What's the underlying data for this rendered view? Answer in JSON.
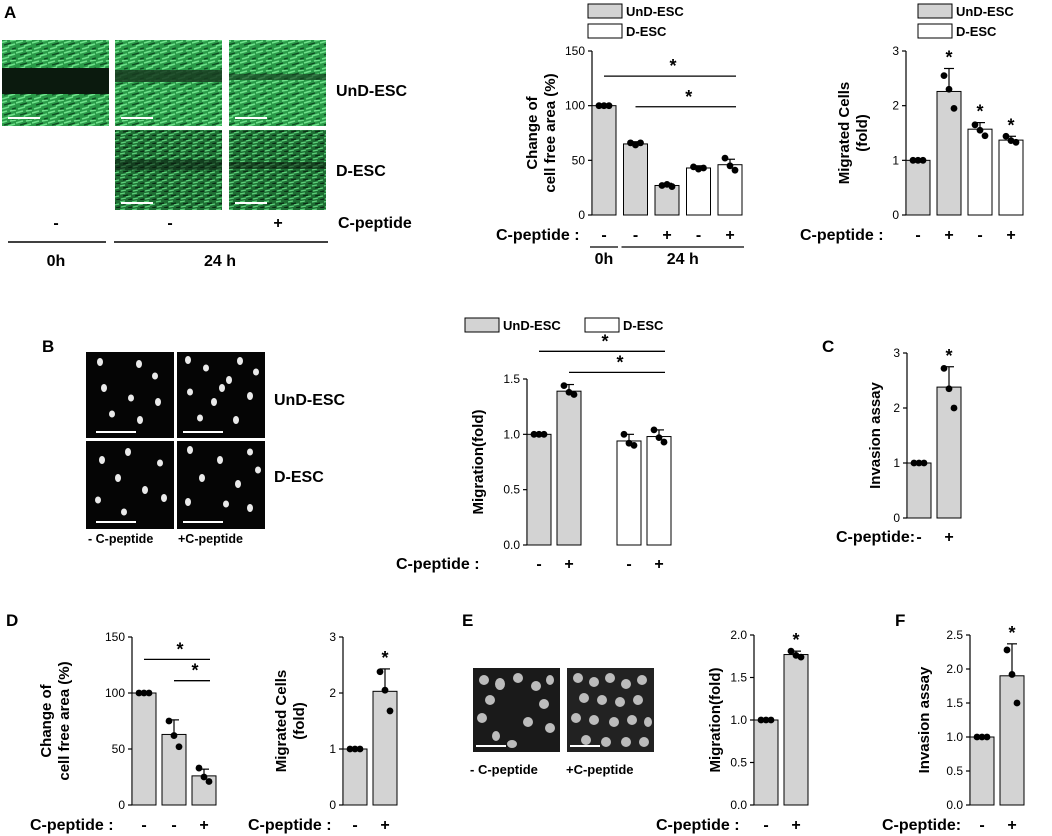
{
  "panels": {
    "A": {
      "letter": "A",
      "images": {
        "row1": "UnD-ESC",
        "row2": "D-ESC",
        "treat_label": "C-peptide",
        "minus": "-",
        "plus": "+",
        "time0": "0h",
        "time24": "24 h"
      }
    },
    "B": {
      "letter": "B",
      "images": {
        "row1": "UnD-ESC",
        "row2": "D-ESC",
        "cap_minus": "- C-peptide",
        "cap_plus": "+C-peptide"
      }
    },
    "C": {
      "letter": "C"
    },
    "D": {
      "letter": "D"
    },
    "E": {
      "letter": "E",
      "images": {
        "cap_minus": "- C-peptide",
        "cap_plus": "+C-peptide"
      }
    },
    "F": {
      "letter": "F"
    }
  },
  "colors": {
    "und_fill": "#d3d3d3",
    "d_fill": "#ffffff",
    "stroke": "#000000",
    "scratch_green": "#2fae55",
    "scratch_dark": "#0b1a0e"
  },
  "chart_data": [
    {
      "id": "A1",
      "type": "bar",
      "ylabel": [
        "Change of",
        "cell free area (%)"
      ],
      "ylim": [
        0,
        150
      ],
      "yticks": [
        0,
        50,
        100,
        150
      ],
      "legend": [
        "UnD-ESC",
        "D-ESC"
      ],
      "treat_label": "C-peptide :",
      "treatments": [
        "-",
        "-",
        "+",
        "-",
        "+"
      ],
      "time_labels": [
        {
          "text": "0h",
          "bars": [
            0,
            0
          ]
        },
        {
          "text": "24 h",
          "bars": [
            1,
            4
          ]
        }
      ],
      "bars": [
        {
          "value": 100,
          "err": 1,
          "group": "UnD-ESC",
          "points": [
            100,
            100,
            100
          ]
        },
        {
          "value": 65,
          "err": 2,
          "group": "UnD-ESC",
          "points": [
            66,
            64,
            66
          ]
        },
        {
          "value": 27,
          "err": 2,
          "group": "UnD-ESC",
          "points": [
            27,
            28,
            26
          ]
        },
        {
          "value": 43,
          "err": 2,
          "group": "D-ESC",
          "points": [
            44,
            42,
            43
          ]
        },
        {
          "value": 46,
          "err": 5,
          "group": "D-ESC",
          "points": [
            52,
            45,
            41
          ]
        }
      ],
      "sig": [
        {
          "from": 0,
          "to": 4,
          "y": 127,
          "label": "*"
        },
        {
          "from": 1,
          "to": 4,
          "y": 99,
          "label": "*"
        }
      ]
    },
    {
      "id": "A2",
      "type": "bar",
      "ylabel": [
        "Migrated Cells",
        "(fold)"
      ],
      "ylim": [
        0,
        3
      ],
      "yticks": [
        0,
        1,
        2,
        3
      ],
      "legend": [
        "UnD-ESC",
        "D-ESC"
      ],
      "treat_label": "C-peptide :",
      "treatments": [
        "-",
        "+",
        "-",
        "+"
      ],
      "bars": [
        {
          "value": 1.0,
          "err": 0.02,
          "group": "UnD-ESC",
          "points": [
            1.0,
            1.0,
            1.0
          ]
        },
        {
          "value": 2.26,
          "err": 0.42,
          "group": "UnD-ESC",
          "points": [
            2.55,
            2.3,
            1.95
          ],
          "star": true
        },
        {
          "value": 1.57,
          "err": 0.12,
          "group": "D-ESC",
          "points": [
            1.65,
            1.55,
            1.45
          ],
          "star": true
        },
        {
          "value": 1.37,
          "err": 0.07,
          "group": "D-ESC",
          "points": [
            1.44,
            1.36,
            1.33
          ],
          "star": true
        }
      ]
    },
    {
      "id": "B1",
      "type": "bar",
      "ylabel": [
        "Migration(fold)"
      ],
      "ylim": [
        0,
        1.5
      ],
      "yticks": [
        "0.0",
        "0.5",
        "1.0",
        "1.5"
      ],
      "legend": [
        "UnD-ESC",
        "D-ESC"
      ],
      "treat_label": "C-peptide :",
      "treatments": [
        "-",
        "+",
        "-",
        "+"
      ],
      "bars": [
        {
          "value": 1.0,
          "err": 0.01,
          "group": "UnD-ESC",
          "points": [
            1.0,
            1.0,
            1.0
          ]
        },
        {
          "value": 1.39,
          "err": 0.06,
          "group": "UnD-ESC",
          "points": [
            1.44,
            1.38,
            1.36
          ]
        },
        {
          "value": 0.94,
          "err": 0.06,
          "group": "D-ESC",
          "points": [
            1.0,
            0.92,
            0.9
          ]
        },
        {
          "value": 0.98,
          "err": 0.06,
          "group": "D-ESC",
          "points": [
            1.04,
            0.97,
            0.93
          ]
        }
      ],
      "sig": [
        {
          "from": 0,
          "to": 3,
          "y": 1.75,
          "label": "*"
        },
        {
          "from": 1,
          "to": 3,
          "y": 1.56,
          "label": "*"
        }
      ]
    },
    {
      "id": "C",
      "type": "bar",
      "ylabel": [
        "Invasion assay"
      ],
      "ylim": [
        0,
        3
      ],
      "yticks": [
        0,
        1,
        2,
        3
      ],
      "treat_label": "C-peptide:",
      "treatments": [
        "-",
        "+"
      ],
      "bars": [
        {
          "value": 1.0,
          "err": 0.02,
          "group": "UnD-ESC",
          "points": [
            1.0,
            1.0,
            1.0
          ]
        },
        {
          "value": 2.38,
          "err": 0.37,
          "group": "UnD-ESC",
          "points": [
            2.72,
            2.35,
            2.0
          ],
          "star": true
        }
      ]
    },
    {
      "id": "D1",
      "type": "bar",
      "ylabel": [
        "Change of",
        "cell free area (%)"
      ],
      "ylim": [
        0,
        150
      ],
      "yticks": [
        0,
        50,
        100,
        150
      ],
      "treat_label": "C-peptide :",
      "treatments": [
        "-",
        "-",
        "+"
      ],
      "bars": [
        {
          "value": 100,
          "err": 1,
          "group": "UnD-ESC",
          "points": [
            100,
            100,
            100
          ]
        },
        {
          "value": 63,
          "err": 13,
          "group": "UnD-ESC",
          "points": [
            75,
            62,
            52
          ]
        },
        {
          "value": 26,
          "err": 6,
          "group": "UnD-ESC",
          "points": [
            33,
            25,
            21
          ]
        }
      ],
      "sig": [
        {
          "from": 0,
          "to": 2,
          "y": 130,
          "label": "*"
        },
        {
          "from": 1,
          "to": 2,
          "y": 111,
          "label": "*"
        }
      ]
    },
    {
      "id": "D2",
      "type": "bar",
      "ylabel": [
        "Migrated Cells",
        "(fold)"
      ],
      "ylim": [
        0,
        3
      ],
      "yticks": [
        0,
        1,
        2,
        3
      ],
      "treat_label": "C-peptide :",
      "treatments": [
        "-",
        "+"
      ],
      "bars": [
        {
          "value": 1.0,
          "err": 0.02,
          "group": "UnD-ESC",
          "points": [
            1.0,
            1.0,
            1.0
          ]
        },
        {
          "value": 2.03,
          "err": 0.4,
          "group": "UnD-ESC",
          "points": [
            2.38,
            2.05,
            1.68
          ],
          "star": true
        }
      ]
    },
    {
      "id": "E",
      "type": "bar",
      "ylabel": [
        "Migration(fold)"
      ],
      "ylim": [
        0,
        2
      ],
      "yticks": [
        "0.0",
        "0.5",
        "1.0",
        "1.5",
        "2.0"
      ],
      "treat_label": "C-peptide  :",
      "treatments": [
        "-",
        "+"
      ],
      "bars": [
        {
          "value": 1.0,
          "err": 0.01,
          "group": "UnD-ESC",
          "points": [
            1.0,
            1.0,
            1.0
          ]
        },
        {
          "value": 1.77,
          "err": 0.04,
          "group": "UnD-ESC",
          "points": [
            1.81,
            1.76,
            1.74
          ],
          "star": true
        }
      ]
    },
    {
      "id": "F",
      "type": "bar",
      "ylabel": [
        "Invasion assay"
      ],
      "ylim": [
        0,
        2.5
      ],
      "yticks": [
        "0.0",
        "0.5",
        "1.0",
        "1.5",
        "2.0",
        "2.5"
      ],
      "treat_label": "C-peptide:",
      "treatments": [
        "-",
        "+"
      ],
      "bars": [
        {
          "value": 1.0,
          "err": 0.02,
          "group": "UnD-ESC",
          "points": [
            1.0,
            1.0,
            1.0
          ]
        },
        {
          "value": 1.9,
          "err": 0.47,
          "group": "UnD-ESC",
          "points": [
            2.28,
            1.92,
            1.5
          ],
          "star": true
        }
      ]
    }
  ]
}
